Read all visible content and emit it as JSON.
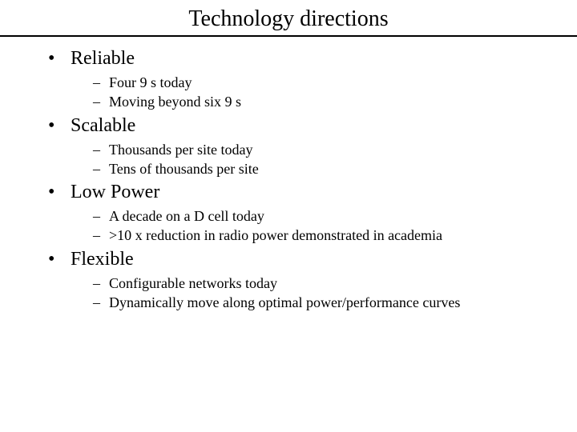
{
  "slide": {
    "title": "Technology directions",
    "title_fontsize": 28,
    "body_fontsize_lvl1": 24,
    "body_fontsize_lvl2": 18,
    "background_color": "#ffffff",
    "text_color": "#000000",
    "rule_color": "#000000",
    "bullets": [
      {
        "label": "Reliable",
        "sub": [
          "Four 9 s today",
          "Moving beyond six 9 s"
        ]
      },
      {
        "label": "Scalable",
        "sub": [
          "Thousands per site today",
          "Tens of thousands per site"
        ]
      },
      {
        "label": "Low Power",
        "sub": [
          "A decade on a D cell today",
          ">10 x reduction in radio power demonstrated in academia"
        ]
      },
      {
        "label": "Flexible",
        "sub": [
          "Configurable networks today",
          "Dynamically move along optimal power/performance curves"
        ]
      }
    ]
  }
}
